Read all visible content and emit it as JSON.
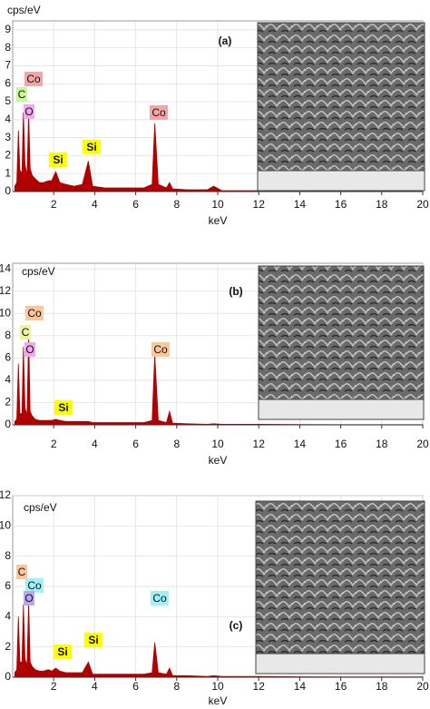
{
  "chart_data": [
    {
      "type": "area",
      "title": "(a)",
      "y_label": "cps/eV",
      "x_label": "keV",
      "color": "#b00000",
      "grid": true,
      "xlim": [
        0,
        20
      ],
      "ylim": [
        0,
        9.5
      ],
      "xticks": [
        2,
        4,
        6,
        8,
        10,
        12,
        14,
        16,
        18,
        20
      ],
      "yticks": [
        0,
        1,
        2,
        3,
        4,
        5,
        6,
        7,
        8,
        9
      ],
      "x": [
        0.1,
        0.2,
        0.28,
        0.35,
        0.45,
        0.52,
        0.6,
        0.7,
        0.78,
        0.85,
        0.95,
        1.1,
        1.3,
        1.5,
        1.74,
        1.9,
        2.1,
        2.3,
        2.6,
        3,
        3.4,
        3.69,
        3.9,
        4.5,
        5.5,
        6.4,
        6.8,
        6.93,
        7.1,
        7.5,
        7.65,
        7.8,
        8.5,
        9.5,
        9.8,
        10.2,
        12,
        14,
        16,
        18,
        20
      ],
      "values": [
        0.3,
        0.5,
        3.4,
        1.2,
        1.0,
        4.4,
        1.5,
        0.9,
        4.4,
        1.3,
        0.9,
        0.7,
        0.5,
        0.5,
        0.6,
        0.6,
        1.1,
        0.5,
        0.4,
        0.3,
        0.4,
        1.7,
        0.3,
        0.2,
        0.2,
        0.2,
        0.4,
        3.8,
        0.4,
        0.2,
        0.5,
        0.15,
        0.1,
        0.1,
        0.3,
        0.05,
        0.05,
        0.03,
        0.02,
        0.02,
        0.02
      ],
      "annotations": [
        {
          "text": "Co",
          "color": "#f4a6a6"
        },
        {
          "text": "C",
          "color": "#ccf5a0"
        },
        {
          "text": "O",
          "color": "#f0a8f0"
        },
        {
          "text": "Si",
          "color": "#ffff00"
        },
        {
          "text": "Si",
          "color": "#ffff00"
        },
        {
          "text": "Co",
          "color": "#f4a6a6"
        }
      ]
    },
    {
      "type": "area",
      "title": "(b)",
      "y_label": "cps/eV",
      "x_label": "keV",
      "color": "#b00000",
      "grid": true,
      "xlim": [
        0,
        20
      ],
      "ylim": [
        0,
        14.5
      ],
      "xticks": [
        2,
        4,
        6,
        8,
        10,
        12,
        14,
        16,
        18,
        20
      ],
      "yticks": [
        0,
        2,
        4,
        6,
        8,
        10,
        12,
        14
      ],
      "x": [
        0.1,
        0.2,
        0.28,
        0.35,
        0.45,
        0.52,
        0.6,
        0.7,
        0.78,
        0.85,
        0.95,
        1.1,
        1.3,
        1.5,
        1.74,
        1.9,
        2.1,
        2.3,
        2.6,
        3,
        3.4,
        3.69,
        3.9,
        4.5,
        5.5,
        6.4,
        6.8,
        6.93,
        7.1,
        7.5,
        7.65,
        7.8,
        8.5,
        9.5,
        9.8,
        10.2,
        12,
        14,
        16,
        18,
        20
      ],
      "values": [
        0.3,
        0.5,
        5.5,
        1.0,
        1.0,
        7.0,
        1.5,
        0.9,
        8.2,
        1.2,
        0.8,
        0.5,
        0.4,
        0.4,
        0.4,
        0.4,
        0.5,
        0.4,
        0.3,
        0.3,
        0.3,
        0.3,
        0.2,
        0.2,
        0.2,
        0.2,
        0.4,
        6.3,
        0.4,
        0.2,
        1.2,
        0.15,
        0.1,
        0.05,
        0.1,
        0.05,
        0.05,
        0.03,
        0.02,
        0.02,
        0.02
      ],
      "annotations": [
        {
          "text": "Co",
          "color": "#f9c79a"
        },
        {
          "text": "C",
          "color": "#e8f5a0"
        },
        {
          "text": "O",
          "color": "#f0a8f0"
        },
        {
          "text": "Si",
          "color": "#ffff00"
        },
        {
          "text": "Co",
          "color": "#f9c79a"
        }
      ]
    },
    {
      "type": "area",
      "title": "(c)",
      "y_label": "cps/eV",
      "x_label": "keV",
      "color": "#b00000",
      "grid": true,
      "xlim": [
        0,
        20
      ],
      "ylim": [
        0,
        12
      ],
      "xticks": [
        2,
        4,
        6,
        8,
        10,
        12,
        14,
        16,
        18,
        20
      ],
      "yticks": [
        0,
        2,
        4,
        6,
        8,
        10,
        12
      ],
      "x": [
        0.1,
        0.2,
        0.28,
        0.35,
        0.45,
        0.52,
        0.6,
        0.7,
        0.78,
        0.85,
        0.95,
        1.1,
        1.3,
        1.5,
        1.74,
        1.9,
        2.1,
        2.3,
        2.6,
        3,
        3.4,
        3.69,
        3.9,
        4.5,
        5.5,
        6.4,
        6.8,
        6.93,
        7.1,
        7.5,
        7.65,
        7.8,
        8.5,
        9.5,
        9.8,
        10.2,
        12,
        14,
        16,
        18,
        20
      ],
      "values": [
        0.3,
        0.5,
        4.0,
        1.0,
        1.0,
        4.8,
        1.2,
        0.8,
        5.0,
        1.0,
        0.7,
        0.5,
        0.4,
        0.4,
        0.5,
        0.4,
        0.6,
        0.4,
        0.3,
        0.3,
        0.3,
        1.0,
        0.2,
        0.2,
        0.2,
        0.2,
        0.3,
        2.3,
        0.3,
        0.2,
        0.6,
        0.1,
        0.1,
        0.05,
        0.1,
        0.05,
        0.05,
        0.03,
        0.02,
        0.02,
        0.02
      ],
      "annotations": [
        {
          "text": "C",
          "color": "#f9c79a"
        },
        {
          "text": "Co",
          "color": "#a0f0f8"
        },
        {
          "text": "O",
          "color": "#b8a8f0"
        },
        {
          "text": "Si",
          "color": "#ffff00"
        },
        {
          "text": "Si",
          "color": "#ffff00"
        },
        {
          "text": "Co",
          "color": "#a0f0f8"
        }
      ]
    }
  ]
}
